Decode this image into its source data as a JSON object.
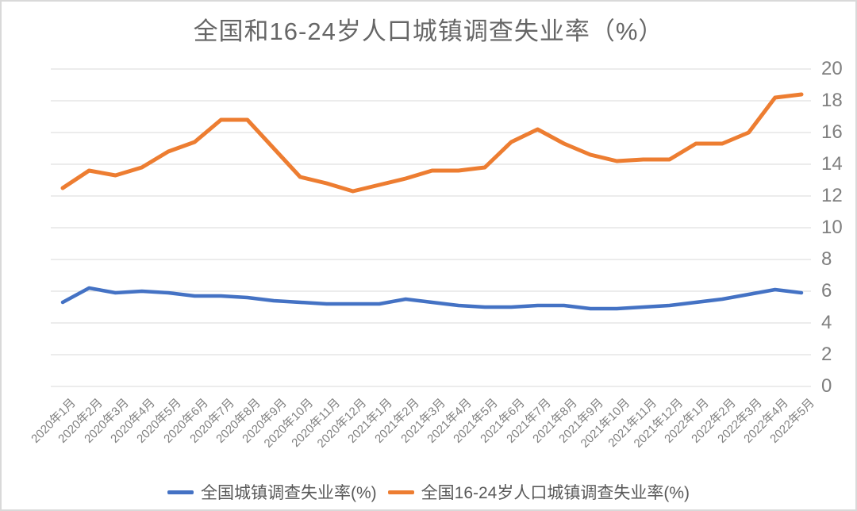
{
  "window": {
    "background": "#FFFFFF",
    "border_color": "#D9D9D9"
  },
  "chart_data": {
    "type": "line",
    "title": "全国和16-24岁人口城镇调查失业率（%）",
    "categories": [
      "2020年1月",
      "2020年2月",
      "2020年3月",
      "2020年4月",
      "2020年5月",
      "2020年6月",
      "2020年7月",
      "2020年8月",
      "2020年9月",
      "2020年10月",
      "2020年11月",
      "2020年12月",
      "2021年1月",
      "2021年2月",
      "2021年3月",
      "2021年4月",
      "2021年5月",
      "2021年6月",
      "2021年7月",
      "2021年8月",
      "2021年9月",
      "2021年10月",
      "2021年11月",
      "2021年12月",
      "2022年1月",
      "2022年2月",
      "2022年3月",
      "2022年4月",
      "2022年5月"
    ],
    "series": [
      {
        "name": "全国城镇调查失业率(%)",
        "color": "#4472C4",
        "stroke_width": 4.5,
        "values": [
          5.3,
          6.2,
          5.9,
          6.0,
          5.9,
          5.7,
          5.7,
          5.6,
          5.4,
          5.3,
          5.2,
          5.2,
          5.2,
          5.5,
          5.3,
          5.1,
          5.0,
          5.0,
          5.1,
          5.1,
          4.9,
          4.9,
          5.0,
          5.1,
          5.3,
          5.5,
          5.8,
          6.1,
          5.9
        ]
      },
      {
        "name": "全国16-24岁人口城镇调查失业率(%)",
        "color": "#ED7D31",
        "stroke_width": 5,
        "values": [
          12.5,
          13.6,
          13.3,
          13.8,
          14.8,
          15.4,
          16.8,
          16.8,
          15.0,
          13.2,
          12.8,
          12.3,
          12.7,
          13.1,
          13.6,
          13.6,
          13.8,
          15.4,
          16.2,
          15.3,
          14.6,
          14.2,
          14.3,
          14.3,
          15.3,
          15.3,
          16.0,
          18.2,
          18.4
        ]
      }
    ],
    "y_axis": {
      "min": 0,
      "max": 20,
      "step": 2,
      "side": "right",
      "ticks": [
        0,
        2,
        4,
        6,
        8,
        10,
        12,
        14,
        16,
        18,
        20
      ]
    },
    "x_axis": {
      "label_rotation_deg": -45
    },
    "grid": true,
    "legend_position": "bottom",
    "colors": {
      "grid": "#D9D9D9",
      "axis_text": "#808080",
      "title_text": "#666666",
      "legend_text": "#595959"
    }
  }
}
